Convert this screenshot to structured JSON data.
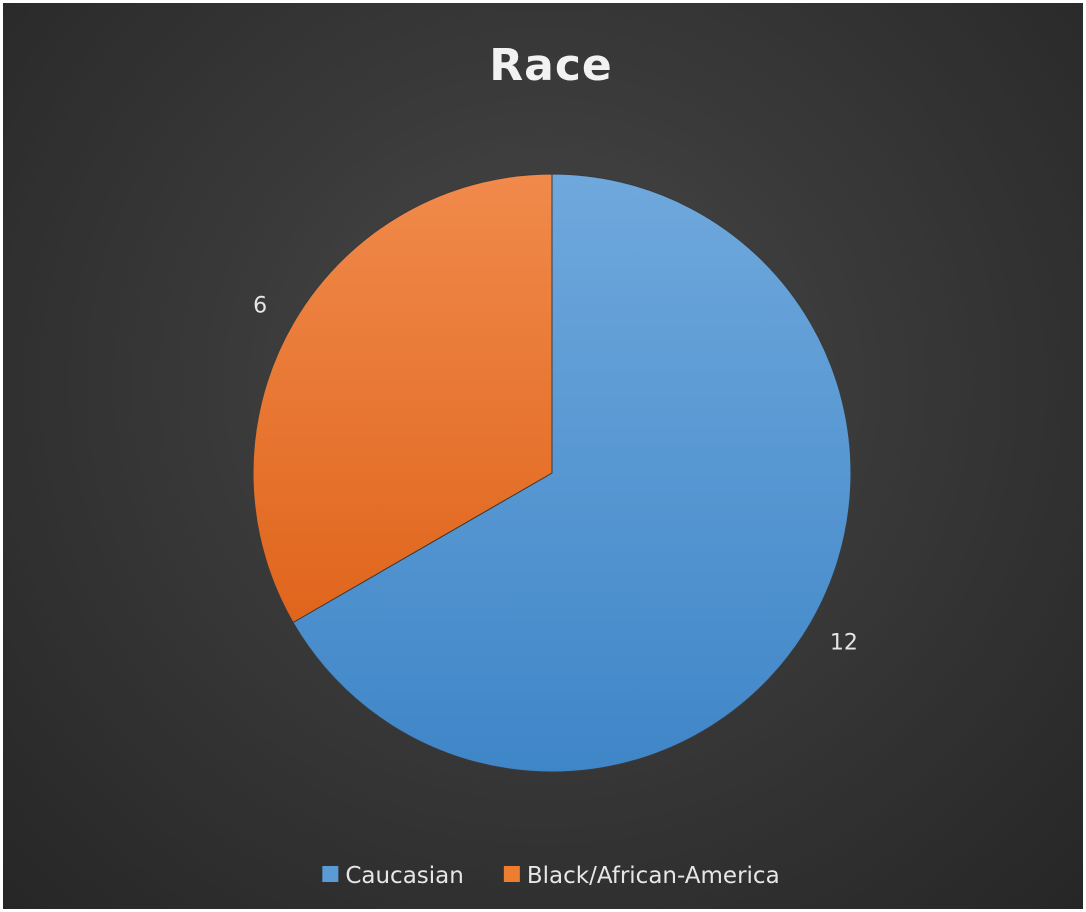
{
  "chart_data": {
    "type": "pie",
    "title": "Race",
    "categories": [
      "Caucasian",
      "Black/African-America"
    ],
    "values": [
      12,
      6
    ],
    "data_labels": [
      "12",
      "6"
    ],
    "colors": [
      "#5b9bd5",
      "#ed7d31"
    ],
    "start_angle_deg": 0,
    "direction": "clockwise",
    "legend_position": "bottom"
  }
}
